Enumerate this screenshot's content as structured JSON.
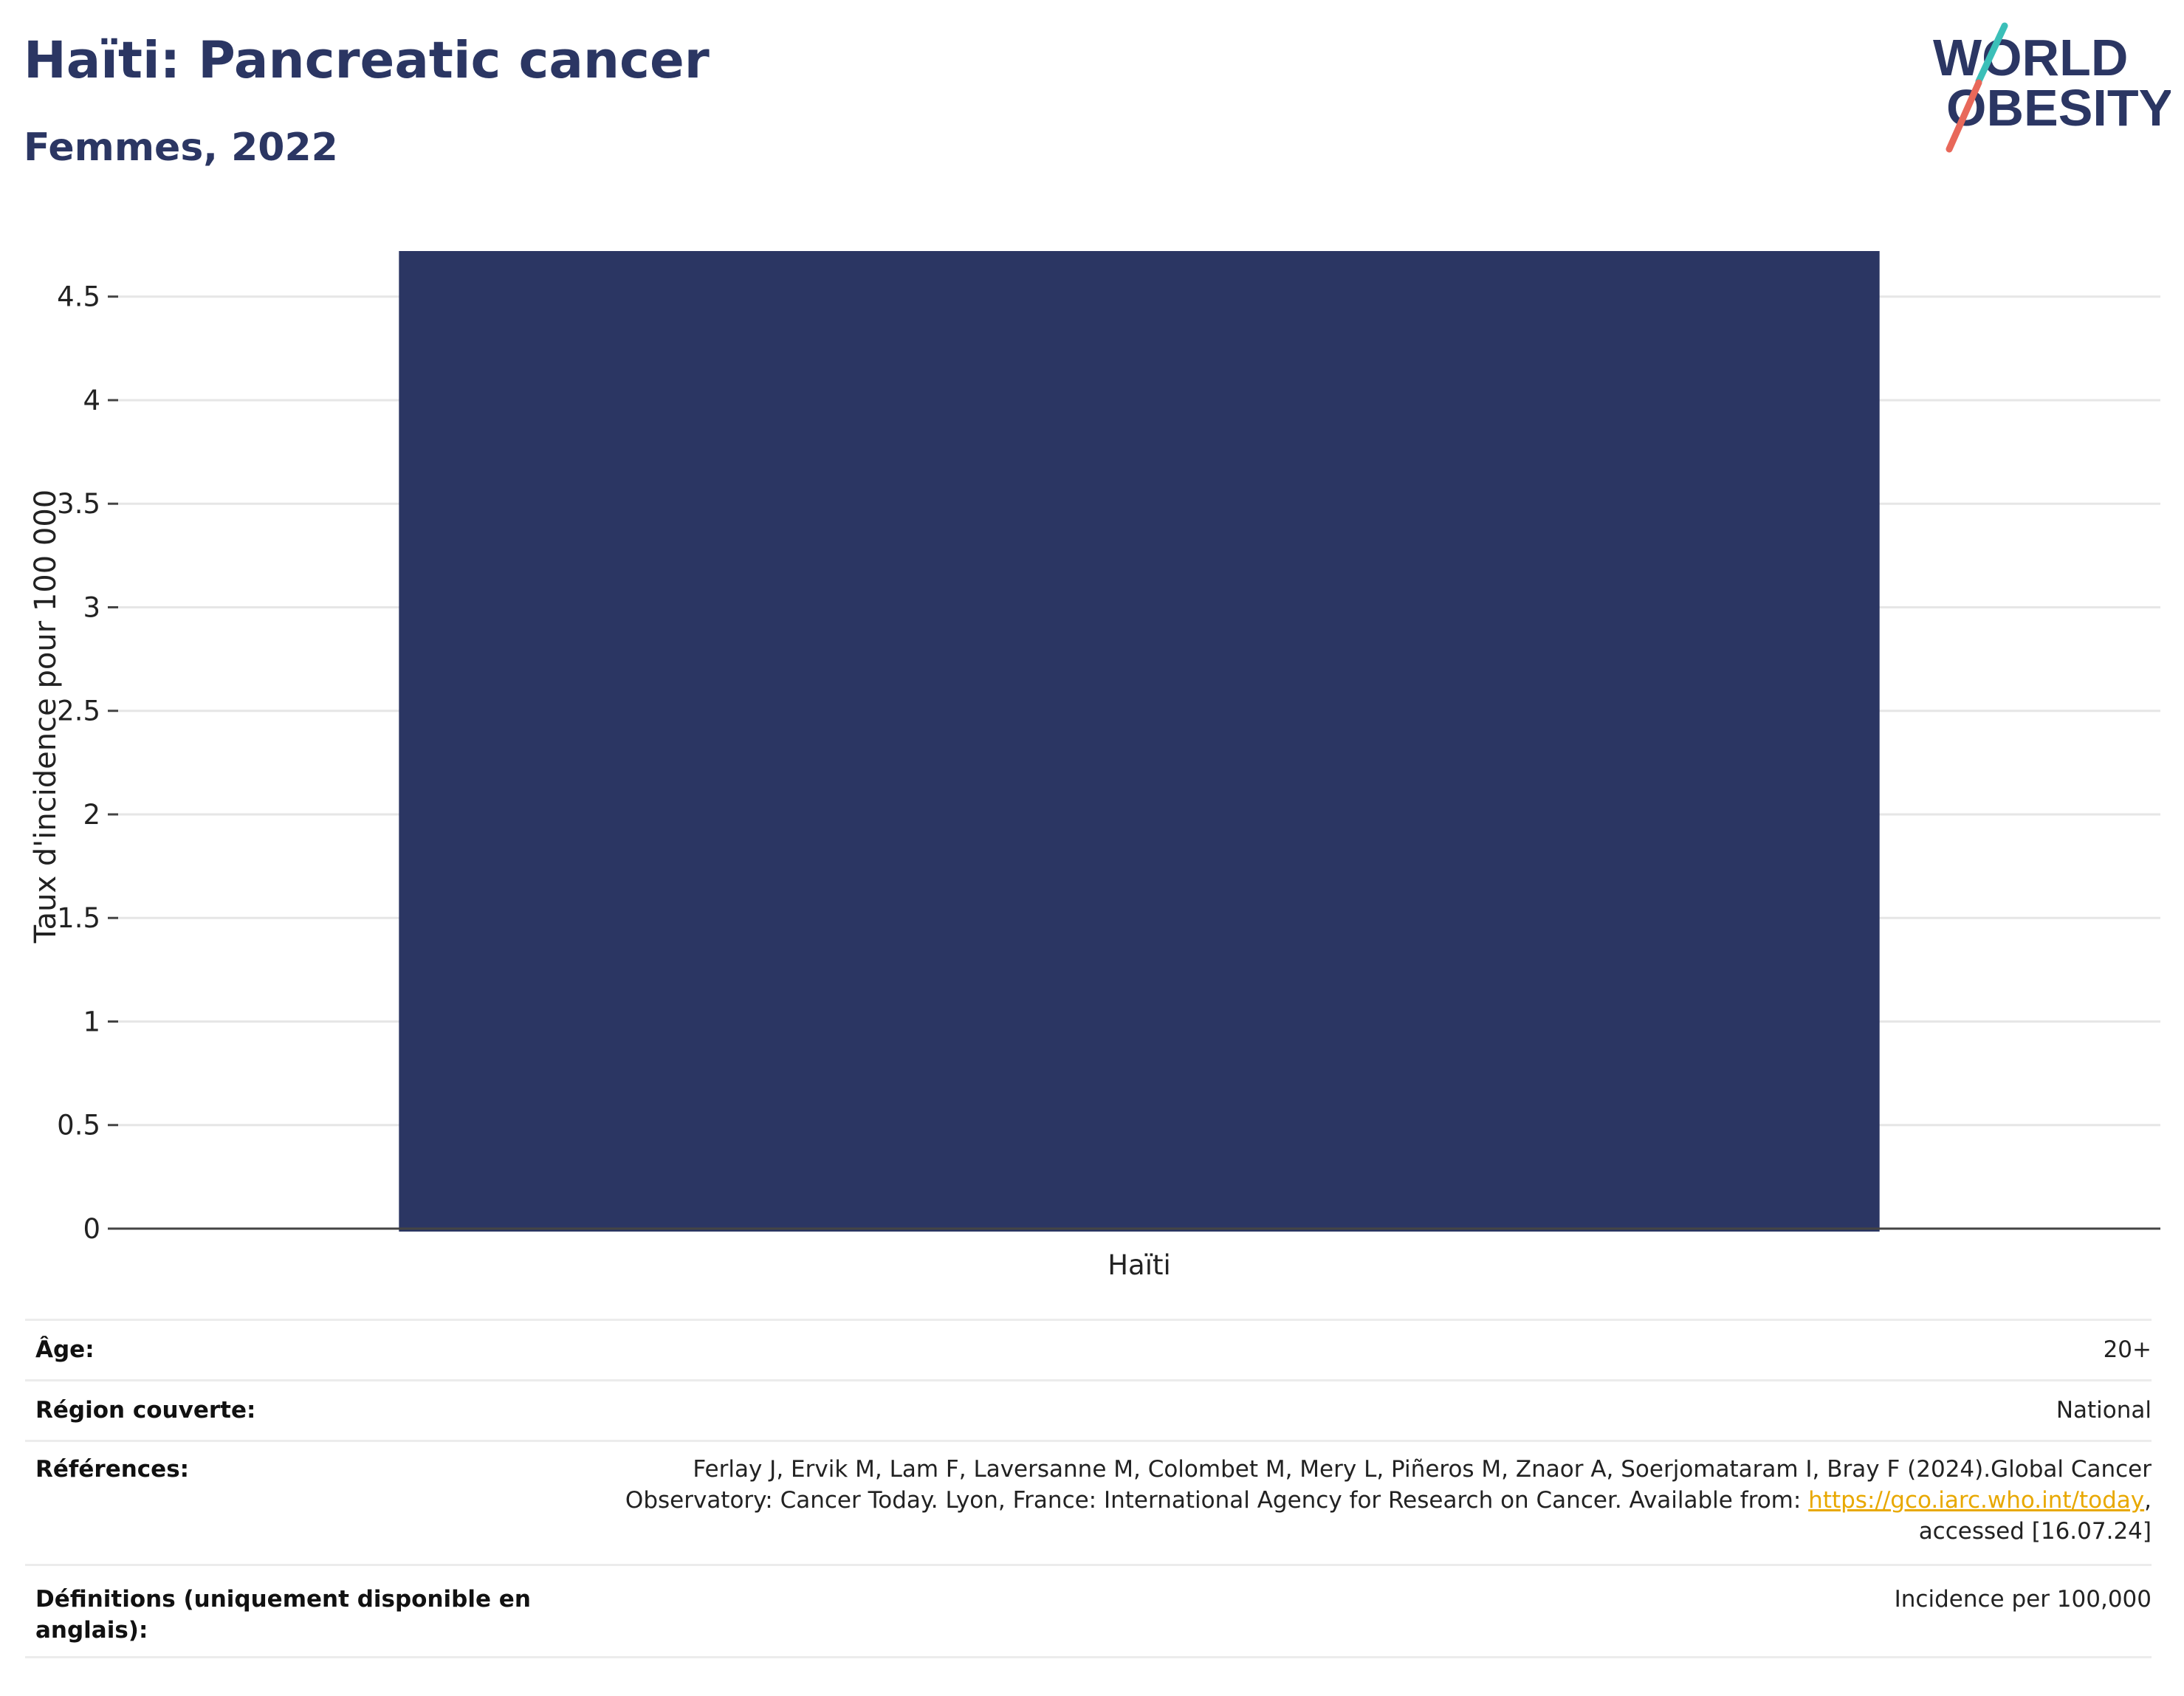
{
  "header": {
    "title": "Haïti: Pancreatic cancer",
    "subtitle": "Femmes, 2022"
  },
  "logo": {
    "line1": "WORLD",
    "line2": "OBESITY",
    "colors": {
      "text": "#2b3663",
      "slash_top": "#3bbfb8",
      "slash_bottom": "#e8685a"
    }
  },
  "colors": {
    "bar": "#2b3663",
    "grid": "#e6e6e6",
    "axis": "#444444",
    "link": "#e8a800"
  },
  "chart_data": {
    "type": "bar",
    "categories": [
      "Haïti"
    ],
    "values": [
      4.72
    ],
    "ylabel": "Taux d'incidence pour 100 000",
    "xlabel": "",
    "ylim": [
      0,
      4.72
    ],
    "yticks": [
      0,
      0.5,
      1,
      1.5,
      2,
      2.5,
      3,
      3.5,
      4,
      4.5
    ],
    "ytick_labels": [
      "0",
      "0.5",
      "1",
      "1.5",
      "2",
      "2.5",
      "3",
      "3.5",
      "4",
      "4.5"
    ],
    "grid": true,
    "legend": "none"
  },
  "metadata": {
    "age_label": "Âge:",
    "age_value": "20+",
    "region_label": "Région couverte:",
    "region_value": "National",
    "references_label": "Références:",
    "references_text_1": "Ferlay J, Ervik M, Lam F, Laversanne M, Colombet M, Mery L, Piñeros M, Znaor A, Soerjomataram I, Bray F (2024).Global Cancer",
    "references_text_2": "Observatory: Cancer Today. Lyon, France: International Agency for Research on Cancer. Available from: ",
    "references_link": "https://gco.iarc.who.int/today",
    "references_text_3": ",",
    "references_text_4": "accessed [16.07.24]",
    "definitions_label": "Définitions (uniquement disponible en anglais):",
    "definitions_value": "Incidence per 100,000"
  }
}
